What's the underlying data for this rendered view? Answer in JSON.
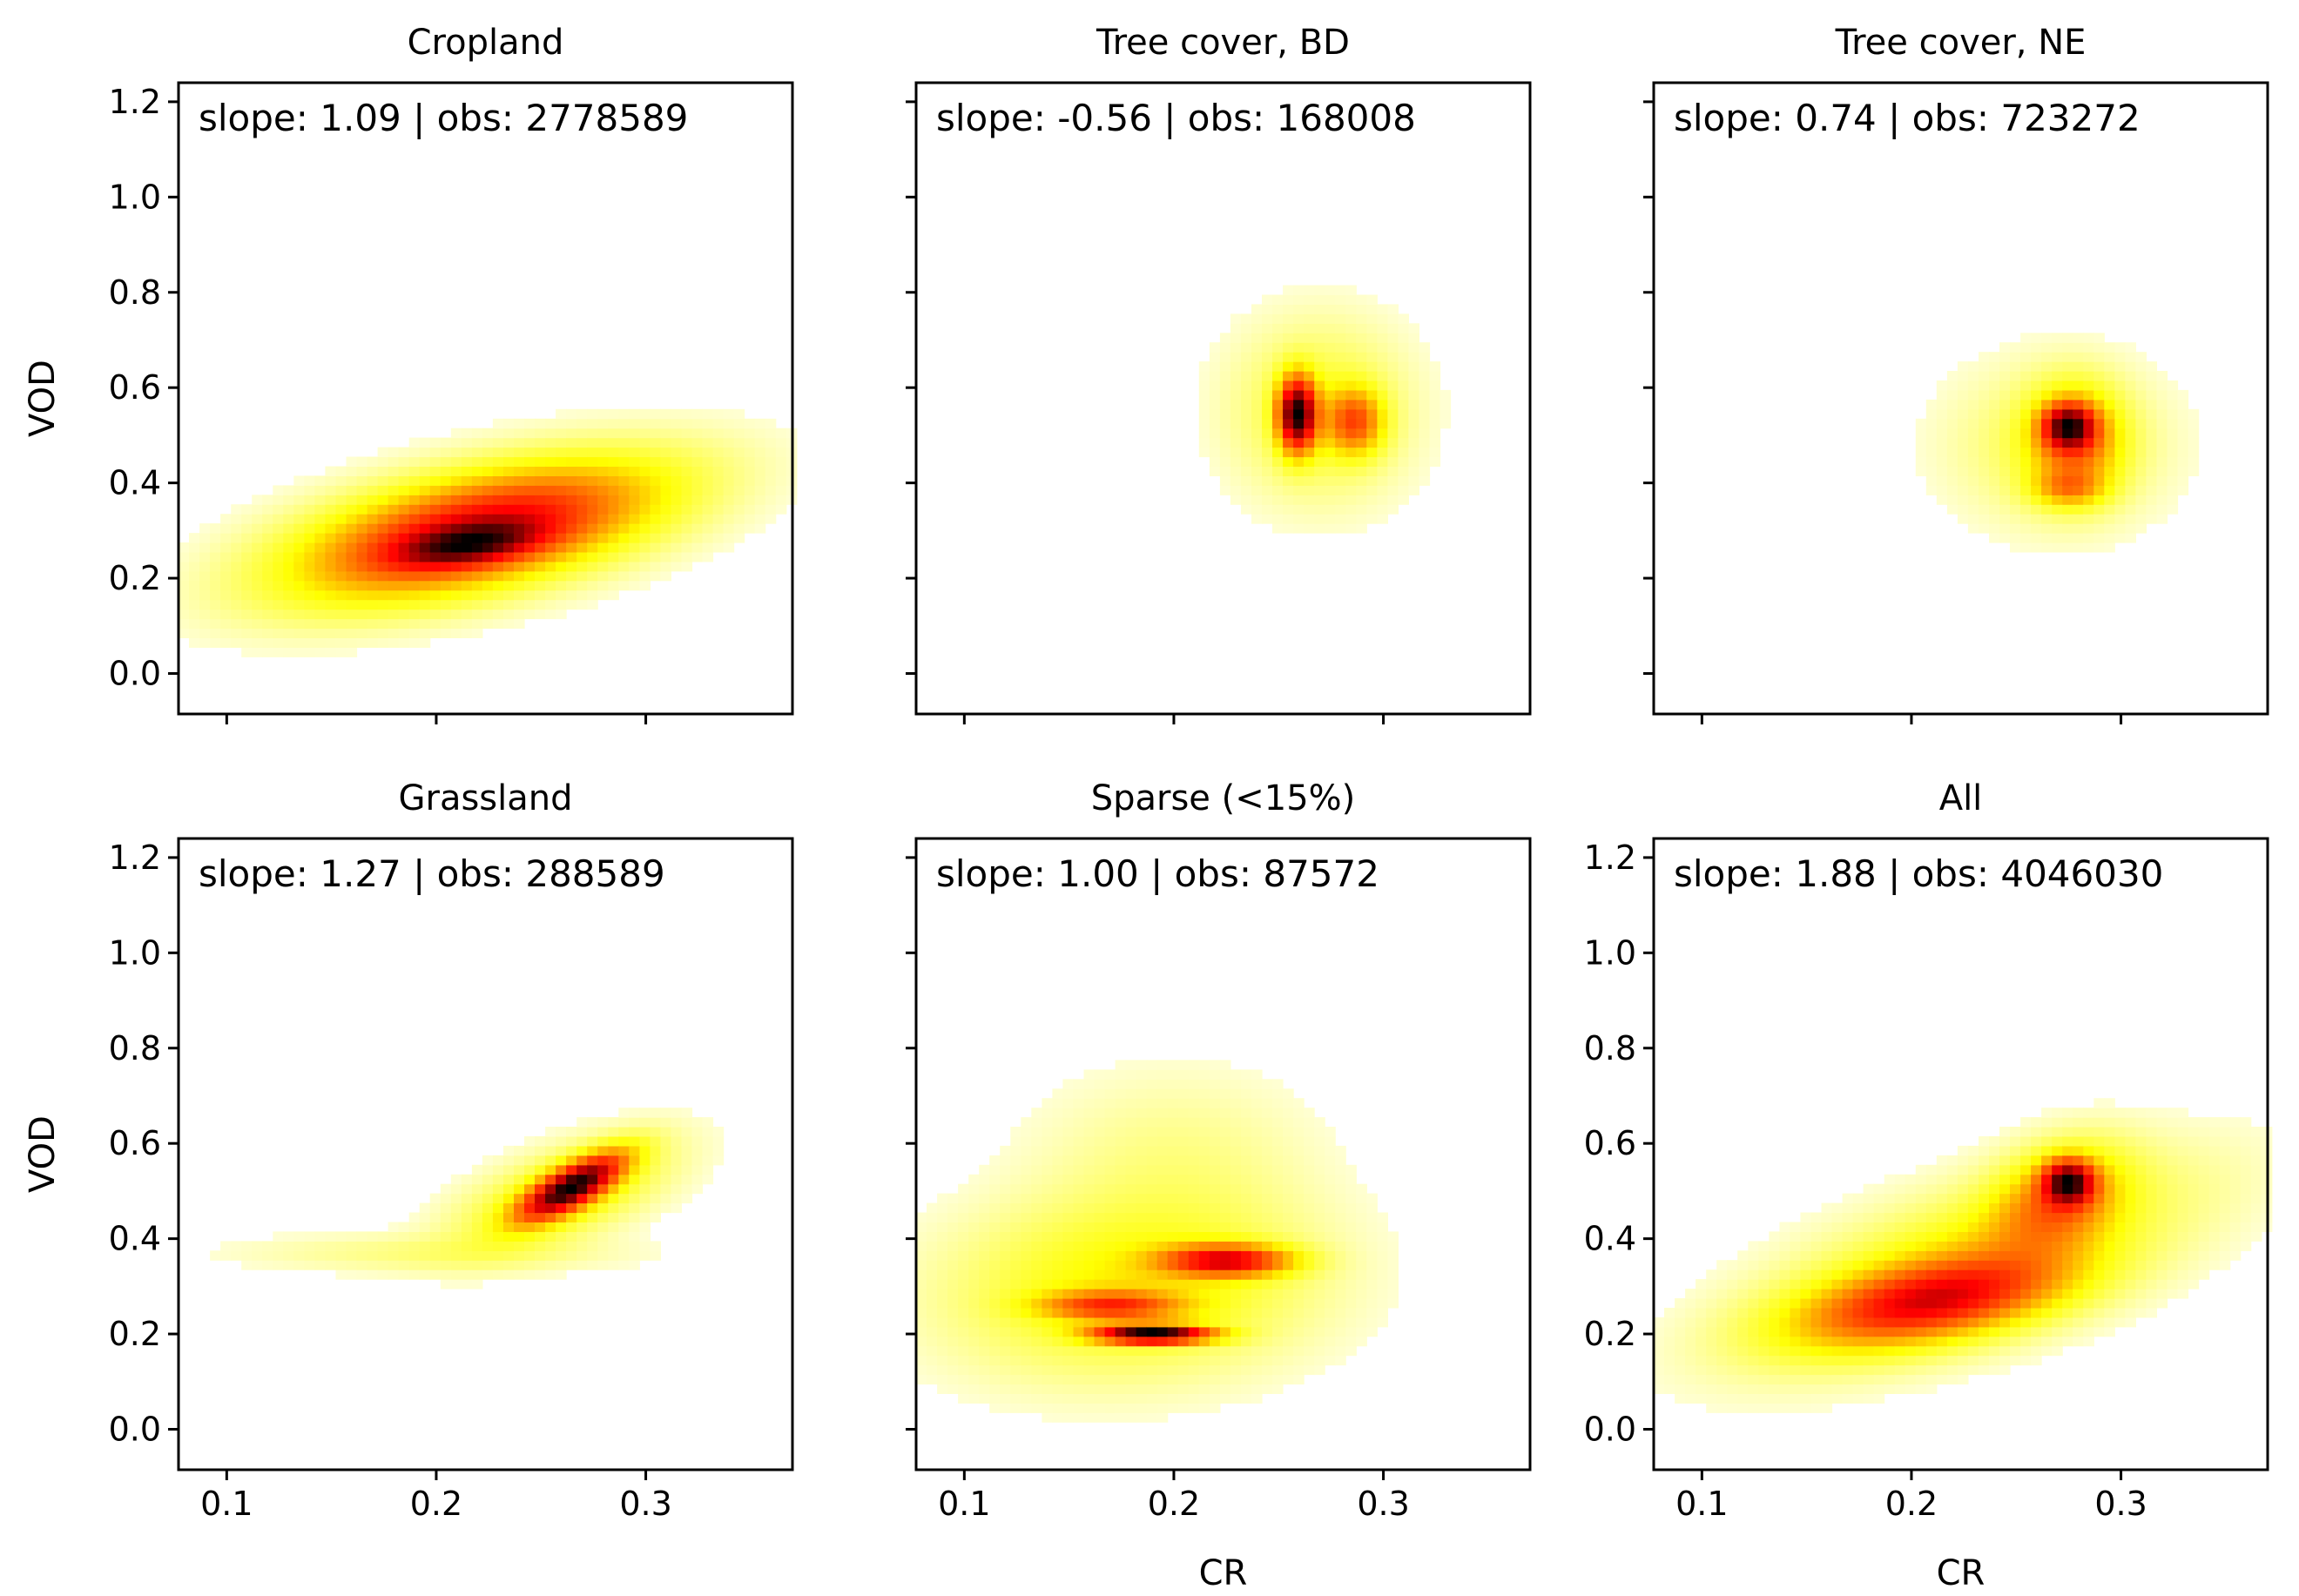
{
  "figure": {
    "colormap": "hot_r",
    "colors": {
      "low": "#ffff00",
      "mid": "#ff0000",
      "high": "#000000"
    }
  },
  "chart_data": [
    {
      "type": "heatmap",
      "title": "Cropland",
      "annotation": "slope: 1.09 | obs: 2778589",
      "xlabel": "",
      "ylabel": "VOD",
      "xlim": [
        0.077,
        0.37
      ],
      "ylim": [
        -0.085,
        1.24
      ],
      "xticks": [
        0.1,
        0.2,
        0.3
      ],
      "xtick_labels": [
        "",
        "",
        ""
      ],
      "yticks": [
        0.0,
        0.2,
        0.4,
        0.6,
        0.8,
        1.0,
        1.2
      ],
      "ytick_labels": [
        "0.0",
        "0.2",
        "0.4",
        "0.6",
        "0.8",
        "1.0",
        "1.2"
      ],
      "density_blobs": [
        {
          "cx": 0.22,
          "cy": 0.3,
          "sx": 0.052,
          "sy": 0.085,
          "rho": 0.55,
          "w": 1.0
        },
        {
          "cx": 0.215,
          "cy": 0.27,
          "sx": 0.022,
          "sy": 0.03,
          "rho": 0.45,
          "w": 0.6
        }
      ]
    },
    {
      "type": "heatmap",
      "title": "Tree cover, BD",
      "annotation": "slope: -0.56 | obs: 168008",
      "xlabel": "",
      "ylabel": "",
      "xlim": [
        0.077,
        0.37
      ],
      "ylim": [
        -0.085,
        1.24
      ],
      "xticks": [
        0.1,
        0.2,
        0.3
      ],
      "xtick_labels": [
        "",
        "",
        ""
      ],
      "yticks": [
        0.0,
        0.2,
        0.4,
        0.6,
        0.8,
        1.0,
        1.2
      ],
      "ytick_labels": [
        "",
        "",
        "",
        "",
        "",
        "",
        ""
      ],
      "density_blobs": [
        {
          "cx": 0.259,
          "cy": 0.545,
          "sx": 0.006,
          "sy": 0.05,
          "rho": 0.0,
          "w": 1.0
        },
        {
          "cx": 0.286,
          "cy": 0.53,
          "sx": 0.009,
          "sy": 0.045,
          "rho": 0.0,
          "w": 0.42
        },
        {
          "cx": 0.27,
          "cy": 0.55,
          "sx": 0.025,
          "sy": 0.11,
          "rho": 0.0,
          "w": 0.12
        }
      ]
    },
    {
      "type": "heatmap",
      "title": "Tree cover, NE",
      "annotation": "slope: 0.74 | obs: 723272",
      "xlabel": "",
      "ylabel": "",
      "xlim": [
        0.077,
        0.37
      ],
      "ylim": [
        -0.085,
        1.24
      ],
      "xticks": [
        0.1,
        0.2,
        0.3
      ],
      "xtick_labels": [
        "",
        "",
        ""
      ],
      "yticks": [
        0.0,
        0.2,
        0.4,
        0.6,
        0.8,
        1.0,
        1.2
      ],
      "ytick_labels": [
        "",
        "",
        "",
        "",
        "",
        "",
        ""
      ],
      "density_blobs": [
        {
          "cx": 0.275,
          "cy": 0.52,
          "sx": 0.008,
          "sy": 0.03,
          "rho": 0.0,
          "w": 1.0
        },
        {
          "cx": 0.278,
          "cy": 0.49,
          "sx": 0.014,
          "sy": 0.07,
          "rho": 0.0,
          "w": 0.55
        },
        {
          "cx": 0.275,
          "cy": 0.39,
          "sx": 0.011,
          "sy": 0.025,
          "rho": 0.0,
          "w": 0.35
        },
        {
          "cx": 0.27,
          "cy": 0.48,
          "sx": 0.03,
          "sy": 0.1,
          "rho": 0.0,
          "w": 0.12
        }
      ]
    },
    {
      "type": "heatmap",
      "title": "Grassland",
      "annotation": "slope: 1.27 | obs: 288589",
      "xlabel": "",
      "ylabel": "VOD",
      "xlim": [
        0.077,
        0.37
      ],
      "ylim": [
        -0.085,
        1.24
      ],
      "xticks": [
        0.1,
        0.2,
        0.3
      ],
      "xtick_labels": [
        "0.1",
        "0.2",
        "0.3"
      ],
      "yticks": [
        0.0,
        0.2,
        0.4,
        0.6,
        0.8,
        1.0,
        1.2
      ],
      "ytick_labels": [
        "0.0",
        "0.2",
        "0.4",
        "0.6",
        "0.8",
        "1.0",
        "1.2"
      ],
      "density_blobs": [
        {
          "cx": 0.265,
          "cy": 0.51,
          "sx": 0.016,
          "sy": 0.045,
          "rho": 0.75,
          "w": 1.0
        },
        {
          "cx": 0.26,
          "cy": 0.49,
          "sx": 0.03,
          "sy": 0.07,
          "rho": 0.6,
          "w": 0.2
        },
        {
          "cx": 0.2,
          "cy": 0.37,
          "sx": 0.055,
          "sy": 0.025,
          "rho": 0.0,
          "w": 0.05
        }
      ]
    },
    {
      "type": "heatmap",
      "title": "Sparse (<15%)",
      "annotation": "slope: 1.00 | obs: 87572",
      "xlabel": "CR",
      "ylabel": "",
      "xlim": [
        0.077,
        0.37
      ],
      "ylim": [
        -0.085,
        1.24
      ],
      "xticks": [
        0.1,
        0.2,
        0.3
      ],
      "xtick_labels": [
        "0.1",
        "0.2",
        "0.3"
      ],
      "yticks": [
        0.0,
        0.2,
        0.4,
        0.6,
        0.8,
        1.0,
        1.2
      ],
      "ytick_labels": [
        "",
        "",
        "",
        "",
        "",
        "",
        ""
      ],
      "density_blobs": [
        {
          "cx": 0.19,
          "cy": 0.2,
          "sx": 0.018,
          "sy": 0.012,
          "rho": 0.0,
          "w": 1.0
        },
        {
          "cx": 0.225,
          "cy": 0.355,
          "sx": 0.02,
          "sy": 0.022,
          "rho": 0.0,
          "w": 0.6
        },
        {
          "cx": 0.17,
          "cy": 0.26,
          "sx": 0.022,
          "sy": 0.02,
          "rho": 0.0,
          "w": 0.4
        },
        {
          "cx": 0.18,
          "cy": 0.3,
          "sx": 0.05,
          "sy": 0.11,
          "rho": 0.1,
          "w": 0.17
        },
        {
          "cx": 0.2,
          "cy": 0.55,
          "sx": 0.04,
          "sy": 0.12,
          "rho": 0.0,
          "w": 0.04
        }
      ]
    },
    {
      "type": "heatmap",
      "title": "All",
      "annotation": "slope: 1.88 | obs: 4046030",
      "xlabel": "CR",
      "ylabel": "",
      "xlim": [
        0.077,
        0.37
      ],
      "ylim": [
        -0.085,
        1.24
      ],
      "xticks": [
        0.1,
        0.2,
        0.3
      ],
      "xtick_labels": [
        "0.1",
        "0.2",
        "0.3"
      ],
      "yticks": [
        0.0,
        0.2,
        0.4,
        0.6,
        0.8,
        1.0,
        1.2
      ],
      "ytick_labels": [
        "0.0",
        "0.2",
        "0.4",
        "0.6",
        "0.8",
        "1.0",
        "1.2"
      ],
      "density_blobs": [
        {
          "cx": 0.21,
          "cy": 0.27,
          "sx": 0.04,
          "sy": 0.06,
          "rho": 0.5,
          "w": 0.75
        },
        {
          "cx": 0.275,
          "cy": 0.52,
          "sx": 0.008,
          "sy": 0.03,
          "rho": 0.0,
          "w": 1.0
        },
        {
          "cx": 0.27,
          "cy": 0.48,
          "sx": 0.02,
          "sy": 0.07,
          "rho": 0.3,
          "w": 0.45
        },
        {
          "cx": 0.23,
          "cy": 0.35,
          "sx": 0.06,
          "sy": 0.12,
          "rho": 0.65,
          "w": 0.25
        }
      ]
    }
  ]
}
